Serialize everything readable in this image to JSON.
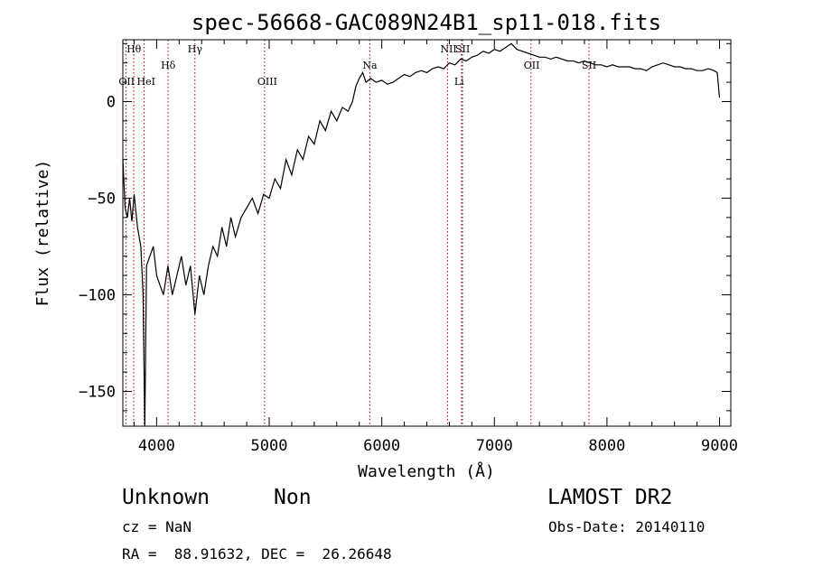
{
  "chart_data": {
    "type": "line",
    "title": "spec-56668-GAC089N24B1_sp11-018.fits",
    "xlabel": "Wavelength (Å)",
    "ylabel": "Flux (relative)",
    "xlim": [
      3700,
      9100
    ],
    "ylim": [
      -168,
      32
    ],
    "xticks": [
      4000,
      5000,
      6000,
      7000,
      8000,
      9000
    ],
    "yticks": [
      0,
      -50,
      -100,
      -150
    ],
    "grid": false,
    "series": [
      {
        "color": "#000000",
        "x": [
          3700,
          3720,
          3740,
          3760,
          3780,
          3800,
          3830,
          3860,
          3880,
          3895,
          3910,
          3940,
          3970,
          4000,
          4030,
          4060,
          4100,
          4140,
          4180,
          4220,
          4260,
          4300,
          4340,
          4380,
          4420,
          4460,
          4500,
          4540,
          4580,
          4620,
          4660,
          4700,
          4750,
          4800,
          4850,
          4900,
          4950,
          5000,
          5050,
          5100,
          5150,
          5200,
          5250,
          5300,
          5350,
          5400,
          5450,
          5500,
          5550,
          5600,
          5650,
          5700,
          5740,
          5770,
          5800,
          5830,
          5860,
          5900,
          5950,
          6000,
          6050,
          6100,
          6150,
          6200,
          6250,
          6300,
          6350,
          6400,
          6450,
          6500,
          6550,
          6600,
          6650,
          6700,
          6750,
          6800,
          6850,
          6900,
          6950,
          7000,
          7050,
          7100,
          7150,
          7200,
          7250,
          7300,
          7350,
          7400,
          7450,
          7500,
          7550,
          7600,
          7650,
          7700,
          7750,
          7800,
          7850,
          7900,
          7950,
          8000,
          8050,
          8100,
          8150,
          8200,
          8250,
          8300,
          8350,
          8400,
          8450,
          8500,
          8550,
          8600,
          8650,
          8700,
          8750,
          8800,
          8850,
          8900,
          8950,
          8980,
          9000
        ],
        "y": [
          -30,
          -55,
          -60,
          -50,
          -62,
          -48,
          -65,
          -75,
          -100,
          -168,
          -85,
          -80,
          -75,
          -90,
          -95,
          -100,
          -85,
          -100,
          -90,
          -80,
          -95,
          -85,
          -110,
          -90,
          -100,
          -85,
          -75,
          -80,
          -65,
          -75,
          -60,
          -70,
          -60,
          -55,
          -50,
          -58,
          -48,
          -50,
          -40,
          -45,
          -30,
          -38,
          -25,
          -30,
          -18,
          -22,
          -10,
          -15,
          -5,
          -10,
          -3,
          -5,
          0,
          8,
          12,
          15,
          10,
          12,
          10,
          11,
          9,
          10,
          12,
          14,
          13,
          15,
          16,
          15,
          17,
          18,
          17,
          20,
          19,
          22,
          21,
          23,
          24,
          26,
          25,
          27,
          26,
          28,
          30,
          27,
          26,
          25,
          24,
          23,
          23,
          22,
          23,
          22,
          21,
          21,
          20,
          21,
          20,
          19,
          19,
          18,
          19,
          18,
          18,
          18,
          17,
          17,
          16,
          18,
          19,
          20,
          19,
          18,
          18,
          17,
          17,
          16,
          16,
          17,
          16,
          15,
          2
        ]
      }
    ],
    "lines": [
      {
        "label": "Hθ",
        "x": 3797
      },
      {
        "label": "OII",
        "x": 3727
      },
      {
        "label": "HeI",
        "x": 3889
      },
      {
        "label": "Hδ",
        "x": 4102
      },
      {
        "label": "Hγ",
        "x": 4340
      },
      {
        "label": "OIII",
        "x": 4959
      },
      {
        "label": "Na",
        "x": 5893
      },
      {
        "label": "NII",
        "x": 6584
      },
      {
        "label": "SII",
        "x": 6717
      },
      {
        "label": "Li",
        "x": 6708
      },
      {
        "label": "OII",
        "x": 7325
      },
      {
        "label": "SII",
        "x": 7840
      }
    ]
  },
  "info": {
    "class": "Unknown",
    "subclass": "Non",
    "survey": "LAMOST DR2",
    "cz": "cz = NaN",
    "obs_date": "Obs-Date: 20140110",
    "coords": "RA =  88.91632, DEC =  26.26648"
  }
}
